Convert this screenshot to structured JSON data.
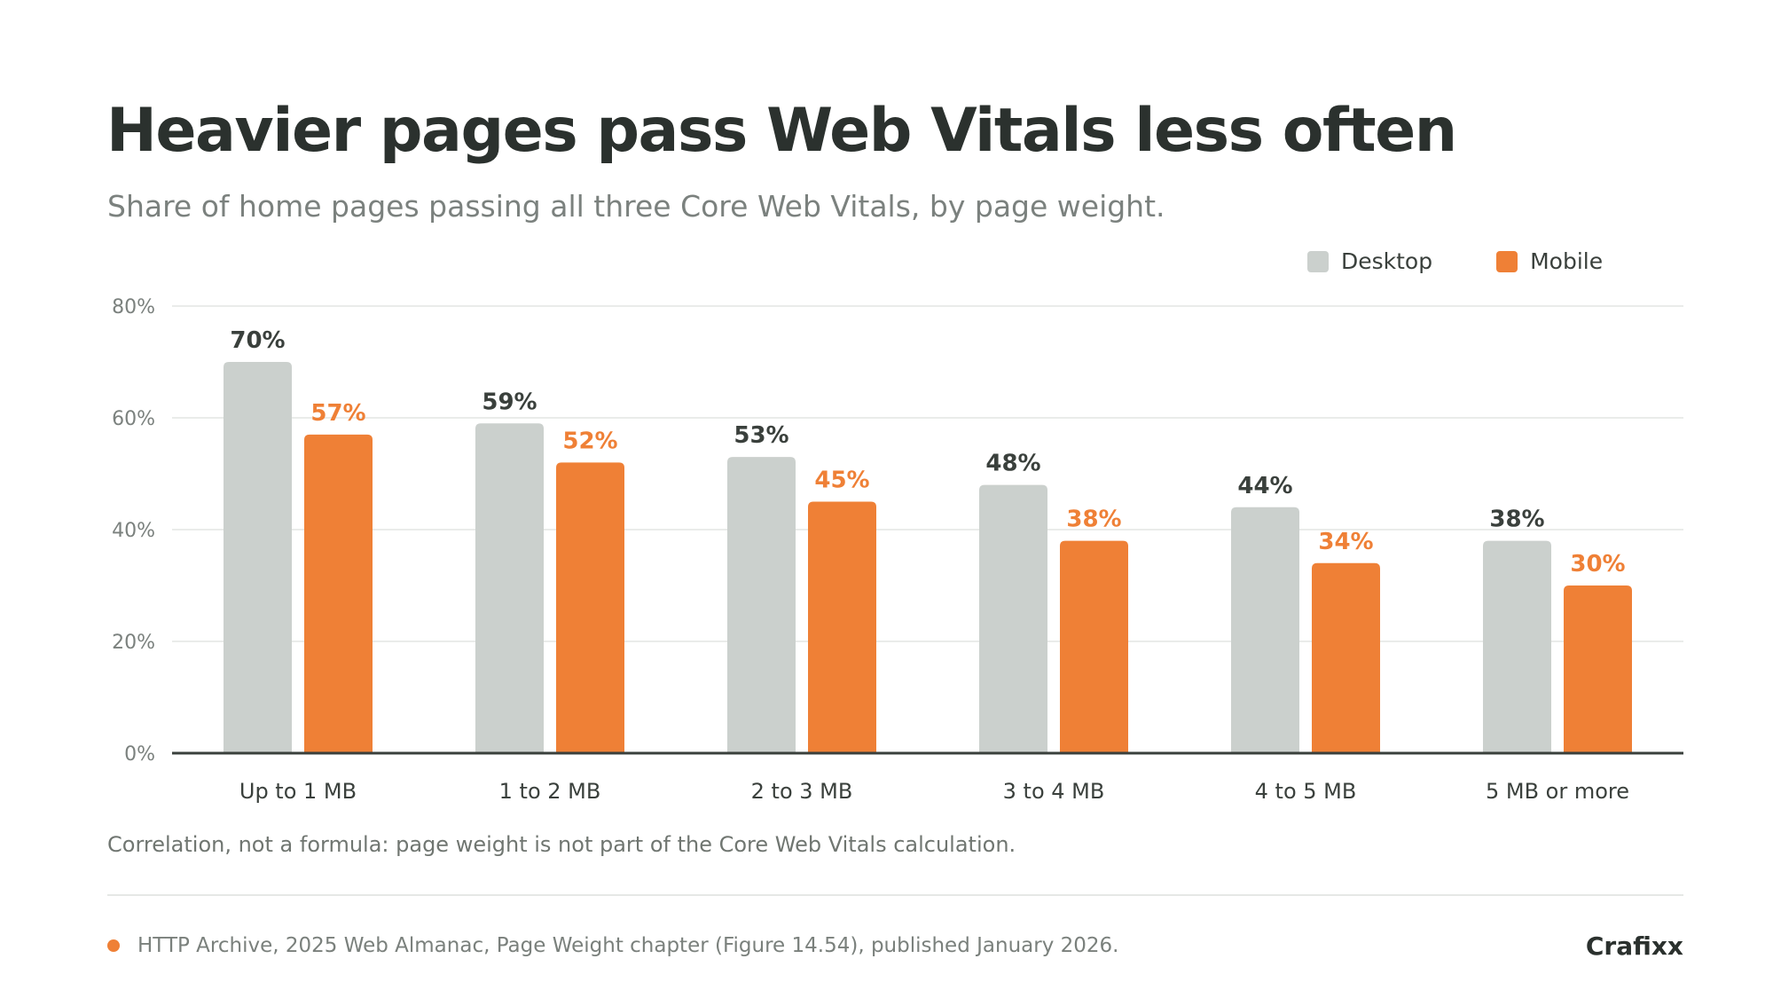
{
  "colors": {
    "desktop": "#cbd0cd",
    "mobile": "#ef8036",
    "desktop_label": "#3a403c",
    "mobile_label": "#ef8036",
    "grid": "#e3e6e4",
    "axis": "#3a403c",
    "tick_label": "#7b817e"
  },
  "title": "Heavier pages pass Web Vitals less often",
  "subtitle": "Share of home pages passing all three Core Web Vitals, by page weight.",
  "legend": {
    "desktop": "Desktop",
    "mobile": "Mobile"
  },
  "note": "Correlation, not a formula: page weight is not part of the Core Web Vitals calculation.",
  "source": "HTTP Archive, 2025 Web Almanac, Page Weight chapter (Figure 14.54), published January 2026.",
  "brand": "Crafixx",
  "chart_data": {
    "type": "bar",
    "categories": [
      "Up to 1 MB",
      "1 to 2 MB",
      "2 to 3 MB",
      "3 to 4 MB",
      "4 to 5 MB",
      "5 MB or more"
    ],
    "series": [
      {
        "name": "Desktop",
        "values": [
          70,
          59,
          53,
          48,
          44,
          38
        ],
        "labels": [
          "70%",
          "59%",
          "53%",
          "48%",
          "44%",
          "38%"
        ]
      },
      {
        "name": "Mobile",
        "values": [
          57,
          52,
          45,
          38,
          34,
          30
        ],
        "labels": [
          "57%",
          "52%",
          "45%",
          "38%",
          "34%",
          "30%"
        ]
      }
    ],
    "ylim": [
      0,
      80
    ],
    "yticks": [
      0,
      20,
      40,
      60,
      80
    ],
    "ytick_labels": [
      "0%",
      "20%",
      "40%",
      "60%",
      "80%"
    ],
    "grid": true,
    "legend_position": "top-right"
  }
}
